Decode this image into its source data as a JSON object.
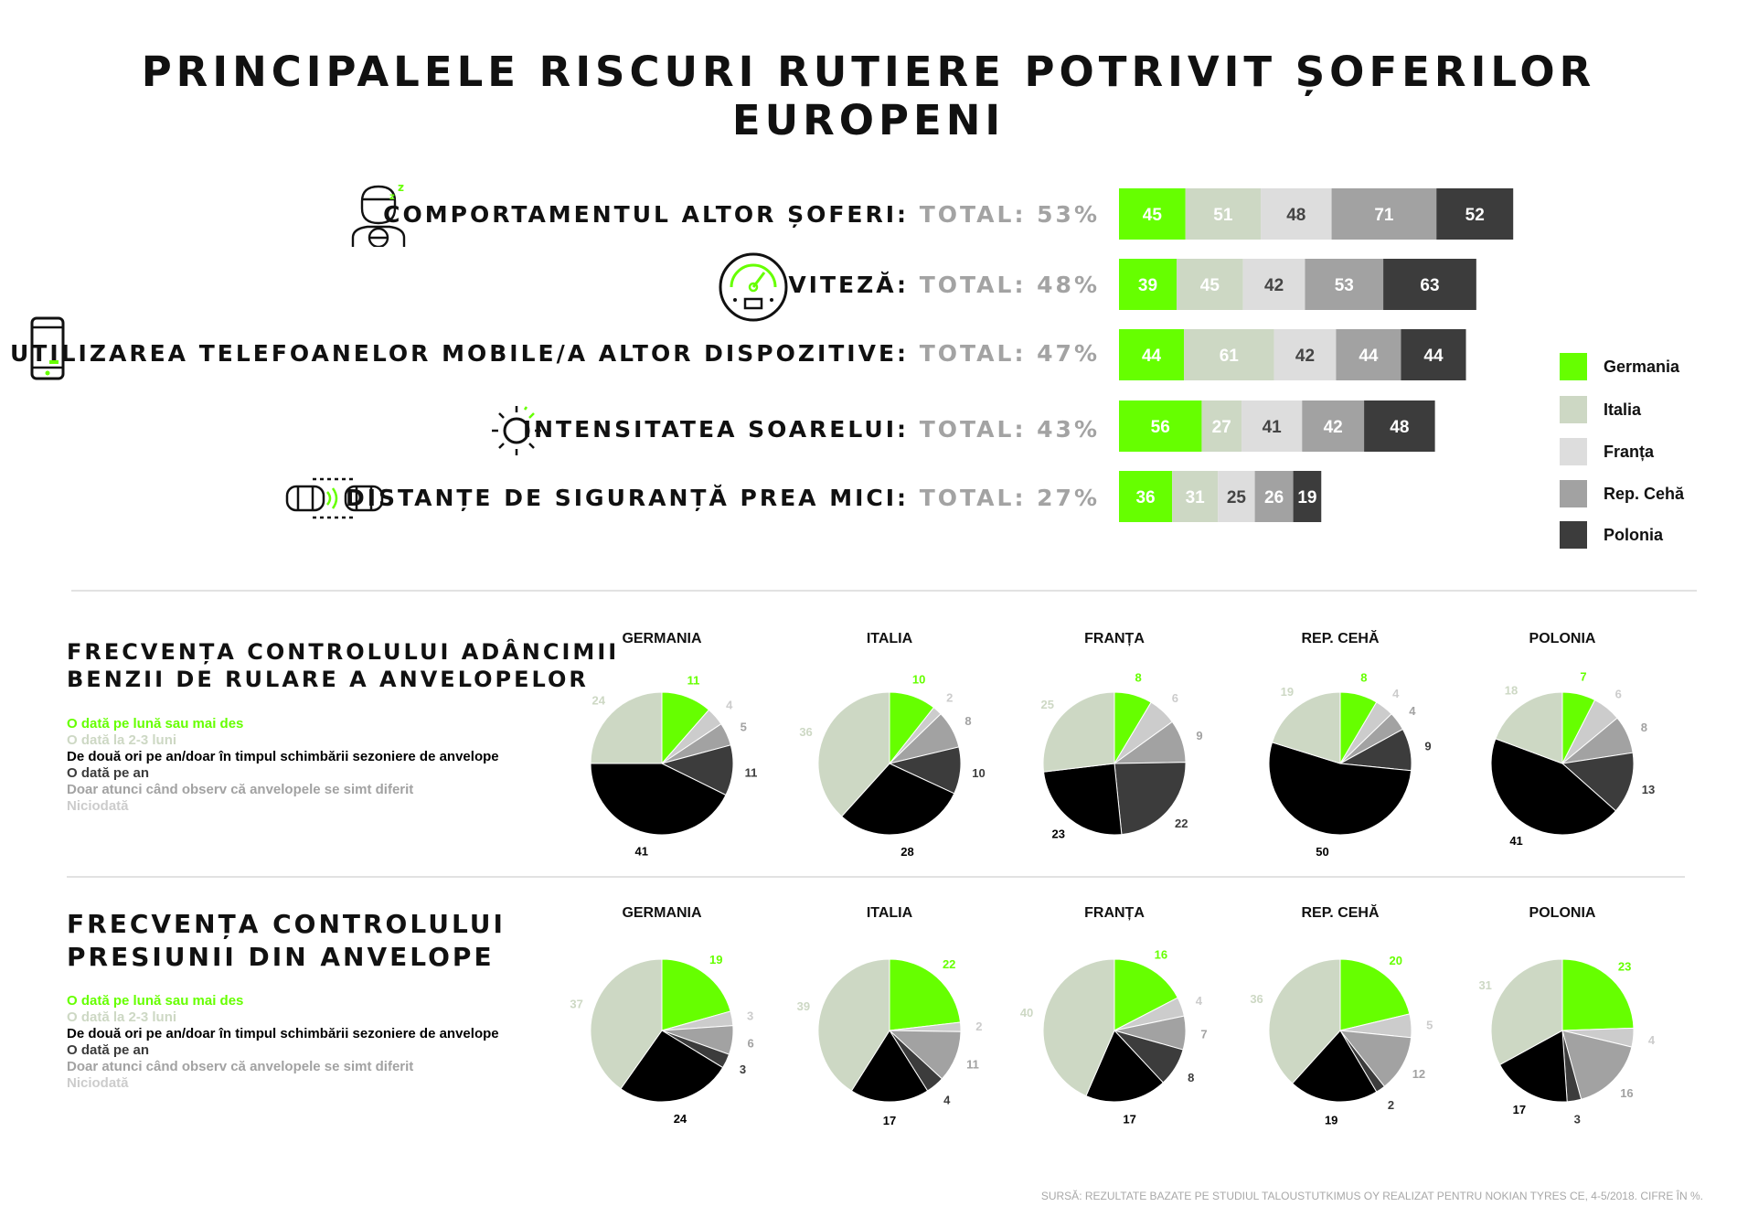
{
  "title": "PRINCIPALELE RISCURI RUTIERE POTRIVIT ȘOFERILOR EUROPENI",
  "colors": {
    "Germania": "#66ff00",
    "Italia": "#cdd8c4",
    "Franța": "#dddddd",
    "Rep. Cehă": "#a2a2a2",
    "Polonia": "#3c3c3c"
  },
  "legend": [
    "Germania",
    "Italia",
    "Franța",
    "Rep. Cehă",
    "Polonia"
  ],
  "risks": [
    {
      "label": "COMPORTAMENTUL ALTOR ȘOFERI:",
      "total": "TOTAL: 53%",
      "icon": "sleepy-driver-icon"
    },
    {
      "label": "VITEZĂ:",
      "total": "TOTAL: 48%",
      "icon": "speedometer-icon"
    },
    {
      "label": "UTILIZAREA TELEFOANELOR MOBILE/A ALTOR DISPOZITIVE:",
      "total": "TOTAL: 47%",
      "icon": "mobile-phone-icon"
    },
    {
      "label": "INTENSITATEA SOARELUI:",
      "total": "TOTAL: 43%",
      "icon": "sun-icon"
    },
    {
      "label": "DISTANȚE DE SIGURANȚĂ PREA MICI:",
      "total": "TOTAL: 27%",
      "icon": "cars-distance-icon"
    }
  ],
  "pie_categories": [
    {
      "label": "O dată pe lună sau mai des",
      "color": "#66ff00"
    },
    {
      "label": "O dată la 2-3 luni",
      "color": "#cdd8c4"
    },
    {
      "label": "De două ori pe an/doar în timpul schimbării sezoniere de anvelope",
      "color": "#000000"
    },
    {
      "label": "O dată pe an",
      "color": "#3c3c3c"
    },
    {
      "label": "Doar atunci când observ că anvelopele se simt diferit",
      "color": "#a2a2a2"
    },
    {
      "label": "Niciodată",
      "color": "#cccccc"
    }
  ],
  "sections": [
    {
      "title": "FRECVENȚA CONTROLULUI ADÂNCIMII\nBENZII DE RULARE A ANVELOPELOR"
    },
    {
      "title": "FRECVENȚA CONTROLULUI\nPRESIUNII DIN ANVELOPE"
    }
  ],
  "source": "SURSĂ: REZULTATE BAZATE PE STUDIUL TALOUSTUTKIMUS OY REALIZAT PENTRU NOKIAN TYRES CE, 4-5/2018. CIFRE ÎN %.",
  "chart_data": [
    {
      "type": "bar",
      "orientation": "horizontal-stacked",
      "categories": [
        "COMPORTAMENTUL ALTOR ȘOFERI",
        "VITEZĂ",
        "UTILIZAREA TELEFOANELOR MOBILE/A ALTOR DISPOZITIVE",
        "INTENSITATEA SOARELUI",
        "DISTANȚE DE SIGURANȚĂ PREA MICI"
      ],
      "series": [
        {
          "name": "Germania",
          "values": [
            45,
            39,
            44,
            56,
            36
          ]
        },
        {
          "name": "Italia",
          "values": [
            51,
            45,
            61,
            27,
            31
          ]
        },
        {
          "name": "Franța",
          "values": [
            48,
            42,
            42,
            41,
            25
          ]
        },
        {
          "name": "Rep. Cehă",
          "values": [
            71,
            53,
            44,
            42,
            26
          ]
        },
        {
          "name": "Polonia",
          "values": [
            52,
            63,
            44,
            48,
            19
          ]
        }
      ],
      "legend_position": "right"
    },
    {
      "type": "pie",
      "section": 0,
      "categories": [
        "O dată pe lună sau mai des",
        "O dată la 2-3 luni",
        "De două ori pe an/doar în timpul schimbării sezoniere de anvelope",
        "O dată pe an",
        "Doar atunci când observ că anvelopele se simt diferit",
        "Niciodată"
      ],
      "pies": [
        {
          "title": "GERMANIA",
          "values": [
            11,
            24,
            41,
            11,
            5,
            4
          ]
        },
        {
          "title": "ITALIA",
          "values": [
            10,
            36,
            28,
            10,
            8,
            2
          ]
        },
        {
          "title": "FRANȚA",
          "values": [
            8,
            25,
            23,
            22,
            9,
            6
          ]
        },
        {
          "title": "REP. CEHĂ",
          "values": [
            8,
            19,
            50,
            9,
            4,
            4
          ]
        },
        {
          "title": "POLONIA",
          "values": [
            7,
            18,
            41,
            13,
            8,
            6
          ]
        }
      ]
    },
    {
      "type": "pie",
      "section": 1,
      "categories": [
        "O dată pe lună sau mai des",
        "O dată la 2-3 luni",
        "De două ori pe an/doar în timpul schimbării sezoniere de anvelope",
        "O dată pe an",
        "Doar atunci când observ că anvelopele se simt diferit",
        "Niciodată"
      ],
      "pies": [
        {
          "title": "GERMANIA",
          "values": [
            19,
            37,
            24,
            3,
            6,
            3
          ]
        },
        {
          "title": "ITALIA",
          "values": [
            22,
            39,
            17,
            4,
            11,
            2
          ]
        },
        {
          "title": "FRANȚA",
          "values": [
            16,
            40,
            17,
            8,
            7,
            4
          ]
        },
        {
          "title": "REP. CEHĂ",
          "values": [
            20,
            36,
            19,
            2,
            12,
            5
          ]
        },
        {
          "title": "POLONIA",
          "values": [
            23,
            31,
            17,
            3,
            16,
            4
          ]
        }
      ]
    }
  ]
}
